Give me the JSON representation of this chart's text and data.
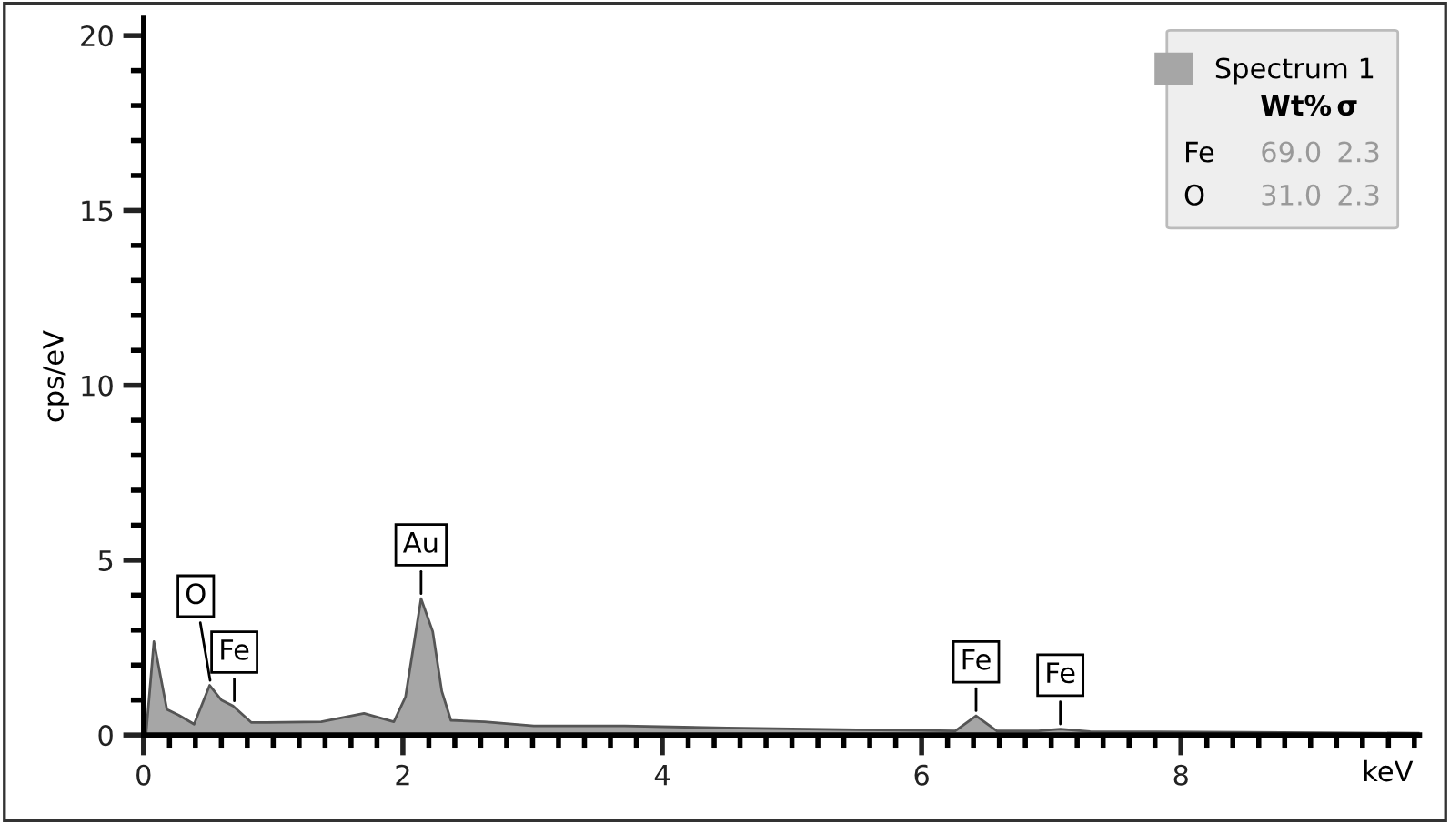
{
  "chart_data": {
    "type": "area",
    "xlabel": "keV",
    "ylabel": "cps/eV",
    "x": [
      0.0,
      0.02,
      0.08,
      0.18,
      0.27,
      0.39,
      0.51,
      0.6,
      0.69,
      0.83,
      0.95,
      1.37,
      1.7,
      1.93,
      2.02,
      2.14,
      2.23,
      2.3,
      2.37,
      2.63,
      3.01,
      3.71,
      4.5,
      5.5,
      6.26,
      6.42,
      6.58,
      6.9,
      7.07,
      7.3,
      8.5,
      9.84
    ],
    "series": [
      {
        "name": "Spectrum 1",
        "color": "#a6a6a6",
        "values": [
          0.0,
          0.05,
          2.67,
          0.73,
          0.57,
          0.31,
          1.42,
          1.0,
          0.83,
          0.36,
          0.36,
          0.38,
          0.62,
          0.38,
          1.09,
          3.9,
          2.96,
          1.25,
          0.42,
          0.38,
          0.26,
          0.26,
          0.2,
          0.15,
          0.12,
          0.55,
          0.12,
          0.12,
          0.17,
          0.1,
          0.08,
          0.05
        ]
      }
    ],
    "xlim": [
      0,
      9.84
    ],
    "ylim": [
      0,
      20.5
    ],
    "xticks": [
      0,
      2,
      4,
      6,
      8
    ],
    "yticks": [
      0,
      5,
      10,
      15,
      20
    ],
    "grid": false,
    "legend": "top right",
    "annotations": [
      {
        "text": "O",
        "x": 0.52,
        "y": 1.42
      },
      {
        "text": "Fe",
        "x": 0.7,
        "y": 0.83
      },
      {
        "text": "Au",
        "x": 2.14,
        "y": 3.9
      },
      {
        "text": "Fe",
        "x": 6.42,
        "y": 0.55
      },
      {
        "text": "Fe",
        "x": 7.07,
        "y": 0.17
      },
      "Wt%",
      "σ",
      "Fe",
      "69.0",
      "2.3",
      "O",
      "31.0",
      "2.3"
    ]
  }
}
